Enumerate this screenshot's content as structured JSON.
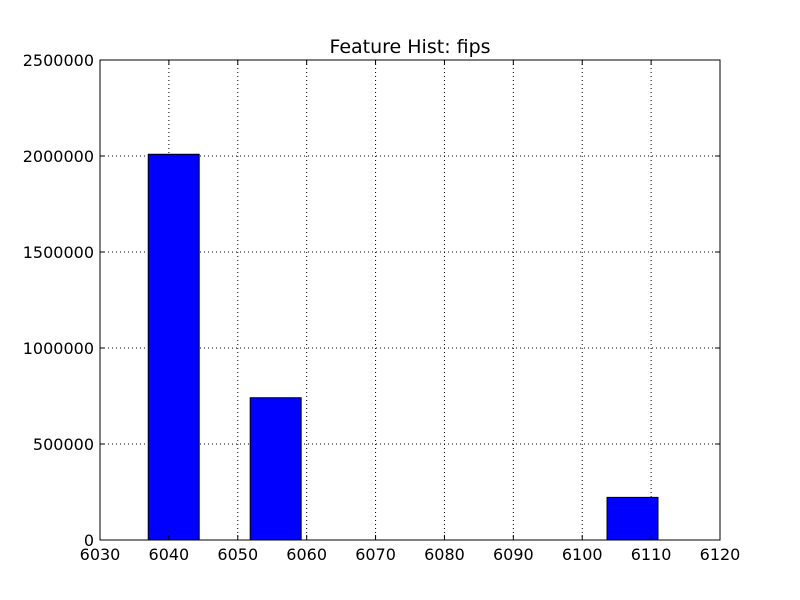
{
  "chart_data": {
    "type": "bar",
    "title": "Feature Hist: fips",
    "xlabel": "",
    "ylabel": "",
    "xlim": [
      6030,
      6120
    ],
    "ylim": [
      0,
      2500000
    ],
    "xticks": [
      6030,
      6040,
      6050,
      6060,
      6070,
      6080,
      6090,
      6100,
      6110,
      6120
    ],
    "yticks": [
      0,
      500000,
      1000000,
      1500000,
      2000000,
      2500000
    ],
    "grid": true,
    "legend": "none",
    "bars": [
      {
        "x_start": 6037.0,
        "x_end": 6044.4,
        "value": 2009000
      },
      {
        "x_start": 6044.4,
        "x_end": 6051.8,
        "value": 0
      },
      {
        "x_start": 6051.8,
        "x_end": 6059.2,
        "value": 741000
      },
      {
        "x_start": 6059.2,
        "x_end": 6066.6,
        "value": 0
      },
      {
        "x_start": 6066.6,
        "x_end": 6074.0,
        "value": 0
      },
      {
        "x_start": 6074.0,
        "x_end": 6081.4,
        "value": 0
      },
      {
        "x_start": 6081.4,
        "x_end": 6088.8,
        "value": 0
      },
      {
        "x_start": 6088.8,
        "x_end": 6096.2,
        "value": 0
      },
      {
        "x_start": 6096.2,
        "x_end": 6103.6,
        "value": 0
      },
      {
        "x_start": 6103.6,
        "x_end": 6111.0,
        "value": 222000
      }
    ],
    "colors": {
      "bar_fill": "#0000ff",
      "bar_edge": "#000000",
      "grid": "#000000",
      "axes": "#000000"
    }
  }
}
